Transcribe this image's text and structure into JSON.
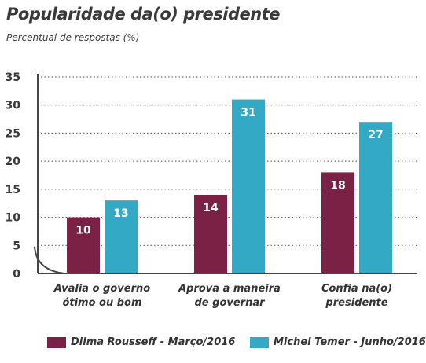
{
  "chart_data": {
    "type": "bar",
    "title": "Popularidade da(o) presidente",
    "subtitle": "Percentual de respostas (%)",
    "xlabel": "",
    "ylabel": "",
    "ylim": [
      0,
      35
    ],
    "yticks": [
      0,
      5,
      10,
      15,
      20,
      25,
      30,
      35
    ],
    "grid": true,
    "legend_position": "bottom",
    "categories": [
      [
        "Avalia o governo",
        "ótimo ou bom"
      ],
      [
        "Aprova a maneira",
        "de governar"
      ],
      [
        "Confia na(o)",
        "presidente"
      ]
    ],
    "series": [
      {
        "name": "Dilma Rousseff - Março/2016",
        "color": "#7a2145",
        "values": [
          10,
          14,
          18
        ],
        "labels": [
          "10",
          "14",
          "18"
        ]
      },
      {
        "name": "Michel Temer  - Junho/2016",
        "color": "#33a9c6",
        "values": [
          13,
          31,
          27
        ],
        "labels": [
          "13",
          "31",
          "27"
        ]
      }
    ]
  }
}
